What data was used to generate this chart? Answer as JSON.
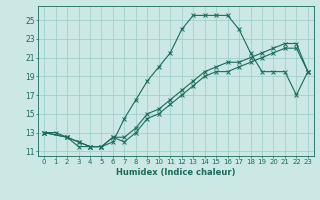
{
  "xlabel": "Humidex (Indice chaleur)",
  "ylabel": "",
  "bg_color": "#cce8e4",
  "grid_color": "#99ccc6",
  "line_color": "#1a6b5a",
  "xlim": [
    -0.5,
    23.5
  ],
  "ylim": [
    10.5,
    26.5
  ],
  "xticks": [
    0,
    1,
    2,
    3,
    4,
    5,
    6,
    7,
    8,
    9,
    10,
    11,
    12,
    13,
    14,
    15,
    16,
    17,
    18,
    19,
    20,
    21,
    22,
    23
  ],
  "yticks": [
    11,
    13,
    15,
    17,
    19,
    21,
    23,
    25
  ],
  "series": [
    {
      "x": [
        0,
        1,
        2,
        3,
        4,
        5,
        6,
        7,
        8,
        9,
        10,
        11,
        12,
        13,
        14,
        15,
        16,
        17,
        18,
        19,
        20,
        21,
        22,
        23
      ],
      "y": [
        13,
        13,
        12.5,
        11.5,
        11.5,
        11.5,
        12,
        14.5,
        16.5,
        18.5,
        20,
        21.5,
        24,
        25.5,
        25.5,
        25.5,
        25.5,
        24,
        21.5,
        19.5,
        19.5,
        19.5,
        17,
        19.5
      ]
    },
    {
      "x": [
        0,
        2,
        3,
        4,
        5,
        6,
        7,
        8,
        9,
        10,
        11,
        12,
        13,
        14,
        15,
        16,
        17,
        18,
        19,
        20,
        21,
        22,
        23
      ],
      "y": [
        13,
        12.5,
        12,
        11.5,
        11.5,
        12.5,
        12,
        13,
        14.5,
        15,
        16,
        17,
        18,
        19,
        19.5,
        19.5,
        20,
        20.5,
        21,
        21.5,
        22,
        22,
        19.5
      ]
    },
    {
      "x": [
        0,
        2,
        3,
        4,
        5,
        6,
        7,
        8,
        9,
        10,
        11,
        12,
        13,
        14,
        15,
        16,
        17,
        18,
        19,
        20,
        21,
        22,
        23
      ],
      "y": [
        13,
        12.5,
        12,
        11.5,
        11.5,
        12.5,
        12.5,
        13.5,
        15,
        15.5,
        16.5,
        17.5,
        18.5,
        19.5,
        20,
        20.5,
        20.5,
        21,
        21.5,
        22,
        22.5,
        22.5,
        19.5
      ]
    }
  ]
}
